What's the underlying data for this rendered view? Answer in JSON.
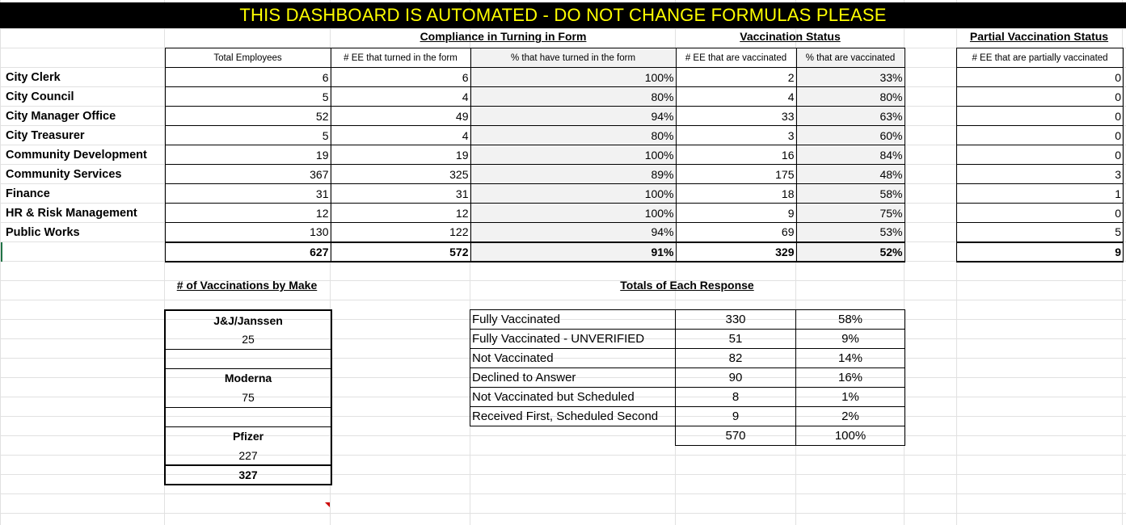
{
  "banner": "THIS DASHBOARD IS AUTOMATED - DO NOT CHANGE FORMULAS PLEASE",
  "headers": {
    "compliance": "Compliance in Turning in Form",
    "vaccination": "Vaccination Status",
    "partial": "Partial Vaccination Status",
    "by_make": "# of Vaccinations by Make",
    "totals_response": "Totals of Each Response"
  },
  "columns": {
    "total_employees": "Total Employees",
    "ee_turned_in": "# EE that turned in the form",
    "pct_turned_in": "% that have turned in the form",
    "ee_vaccinated": "# EE that are vaccinated",
    "pct_vaccinated": "% that are vaccinated",
    "ee_partial": "# EE that are partially vaccinated"
  },
  "departments": [
    {
      "name": "City Clerk",
      "total": "6",
      "turned": "6",
      "pct_turned": "100%",
      "vacc": "2",
      "pct_vacc": "33%",
      "partial": "0"
    },
    {
      "name": "City Council",
      "total": "5",
      "turned": "4",
      "pct_turned": "80%",
      "vacc": "4",
      "pct_vacc": "80%",
      "partial": "0"
    },
    {
      "name": "City Manager Office",
      "total": "52",
      "turned": "49",
      "pct_turned": "94%",
      "vacc": "33",
      "pct_vacc": "63%",
      "partial": "0"
    },
    {
      "name": "City Treasurer",
      "total": "5",
      "turned": "4",
      "pct_turned": "80%",
      "vacc": "3",
      "pct_vacc": "60%",
      "partial": "0"
    },
    {
      "name": "Community Development",
      "total": "19",
      "turned": "19",
      "pct_turned": "100%",
      "vacc": "16",
      "pct_vacc": "84%",
      "partial": "0"
    },
    {
      "name": "Community Services",
      "total": "367",
      "turned": "325",
      "pct_turned": "89%",
      "vacc": "175",
      "pct_vacc": "48%",
      "partial": "3"
    },
    {
      "name": "Finance",
      "total": "31",
      "turned": "31",
      "pct_turned": "100%",
      "vacc": "18",
      "pct_vacc": "58%",
      "partial": "1"
    },
    {
      "name": "HR & Risk Management",
      "total": "12",
      "turned": "12",
      "pct_turned": "100%",
      "vacc": "9",
      "pct_vacc": "75%",
      "partial": "0"
    },
    {
      "name": "Public Works",
      "total": "130",
      "turned": "122",
      "pct_turned": "94%",
      "vacc": "69",
      "pct_vacc": "53%",
      "partial": "5"
    }
  ],
  "totals": {
    "total": "627",
    "turned": "572",
    "pct_turned": "91%",
    "vacc": "329",
    "pct_vacc": "52%",
    "partial": "9"
  },
  "makes": [
    {
      "name": "J&J/Janssen",
      "count": "25"
    },
    {
      "name": "Moderna",
      "count": "75"
    },
    {
      "name": "Pfizer",
      "count": "227"
    }
  ],
  "makes_total": "327",
  "responses": [
    {
      "label": "Fully Vaccinated",
      "count": "330",
      "pct": "58%"
    },
    {
      "label": "Fully Vaccinated - UNVERIFIED",
      "count": "51",
      "pct": "9%"
    },
    {
      "label": "Not Vaccinated",
      "count": "82",
      "pct": "14%"
    },
    {
      "label": "Declined to Answer",
      "count": "90",
      "pct": "16%"
    },
    {
      "label": "Not Vaccinated but Scheduled",
      "count": "8",
      "pct": "1%"
    },
    {
      "label": "Received First, Scheduled Second",
      "count": "9",
      "pct": "2%"
    }
  ],
  "responses_total": {
    "count": "570",
    "pct": "100%"
  }
}
